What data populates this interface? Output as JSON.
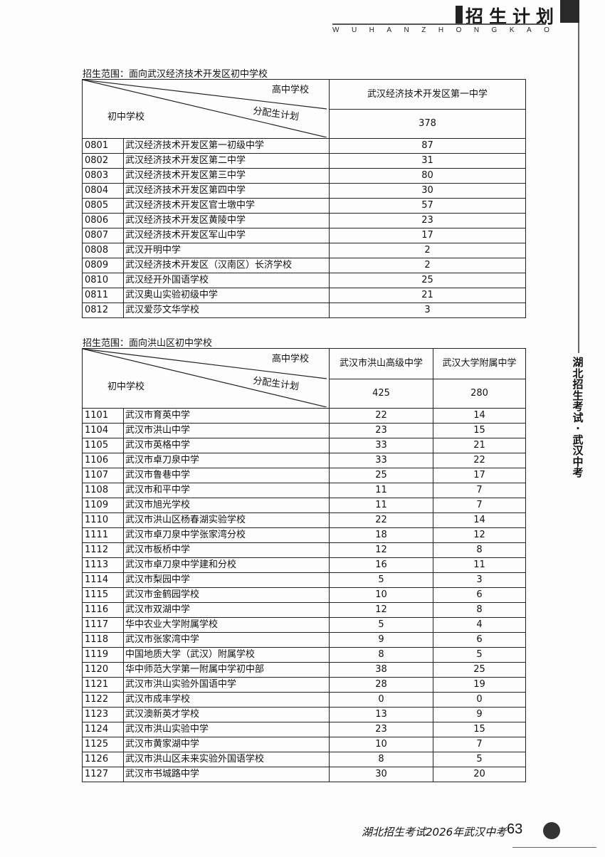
{
  "header": {
    "title": "招生计划",
    "pinyin": [
      "W",
      "U",
      "H",
      "A",
      "N",
      "Z",
      "H",
      "O",
      "N",
      "G",
      "K",
      "A",
      "O"
    ]
  },
  "side_text": "湖北招生考试·武汉中考",
  "tables": [
    {
      "caption": "招生范围：面向武汉经济技术开发区初中学校",
      "corner": {
        "top": "高中学校",
        "middle": "分配生计划",
        "left": "初中学校"
      },
      "high_schools": [
        "武汉经济技术开发区第一中学"
      ],
      "totals": [
        "378"
      ],
      "rows": [
        {
          "code": "0801",
          "name": "武汉经济技术开发区第一初级中学",
          "values": [
            "87"
          ]
        },
        {
          "code": "0802",
          "name": "武汉经济技术开发区第二中学",
          "values": [
            "31"
          ]
        },
        {
          "code": "0803",
          "name": "武汉经济技术开发区第三中学",
          "values": [
            "80"
          ]
        },
        {
          "code": "0804",
          "name": "武汉经济技术开发区第四中学",
          "values": [
            "30"
          ]
        },
        {
          "code": "0805",
          "name": "武汉经济技术开发区官士墩中学",
          "values": [
            "57"
          ]
        },
        {
          "code": "0806",
          "name": "武汉经济技术开发区黄陵中学",
          "values": [
            "23"
          ]
        },
        {
          "code": "0807",
          "name": "武汉经济技术开发区军山中学",
          "values": [
            "17"
          ]
        },
        {
          "code": "0808",
          "name": "武汉开明中学",
          "values": [
            "2"
          ]
        },
        {
          "code": "0809",
          "name": "武汉经济技术开发区（汉南区）长济学校",
          "values": [
            "2"
          ]
        },
        {
          "code": "0810",
          "name": "武汉经开外国语学校",
          "values": [
            "25"
          ]
        },
        {
          "code": "0811",
          "name": "武汉奥山实验初级中学",
          "values": [
            "21"
          ]
        },
        {
          "code": "0812",
          "name": "武汉爱莎文华学校",
          "values": [
            "3"
          ]
        }
      ]
    },
    {
      "caption": "招生范围：面向洪山区初中学校",
      "corner": {
        "top": "高中学校",
        "middle": "分配生计划",
        "left": "初中学校"
      },
      "high_schools": [
        "武汉市洪山高级中学",
        "武汉大学附属中学"
      ],
      "totals": [
        "425",
        "280"
      ],
      "rows": [
        {
          "code": "1101",
          "name": "武汉市育英中学",
          "values": [
            "22",
            "14"
          ]
        },
        {
          "code": "1104",
          "name": "武汉市洪山中学",
          "values": [
            "23",
            "15"
          ]
        },
        {
          "code": "1105",
          "name": "武汉市英格中学",
          "values": [
            "33",
            "21"
          ]
        },
        {
          "code": "1106",
          "name": "武汉市卓刀泉中学",
          "values": [
            "33",
            "22"
          ]
        },
        {
          "code": "1107",
          "name": "武汉市鲁巷中学",
          "values": [
            "25",
            "17"
          ]
        },
        {
          "code": "1108",
          "name": "武汉市和平中学",
          "values": [
            "11",
            "7"
          ]
        },
        {
          "code": "1109",
          "name": "武汉市旭光学校",
          "values": [
            "11",
            "7"
          ]
        },
        {
          "code": "1110",
          "name": "武汉市洪山区杨春湖实验学校",
          "values": [
            "22",
            "14"
          ]
        },
        {
          "code": "1111",
          "name": "武汉市卓刀泉中学张家湾分校",
          "values": [
            "18",
            "12"
          ]
        },
        {
          "code": "1112",
          "name": "武汉市板桥中学",
          "values": [
            "12",
            "8"
          ]
        },
        {
          "code": "1113",
          "name": "武汉市卓刀泉中学建和分校",
          "values": [
            "16",
            "11"
          ]
        },
        {
          "code": "1114",
          "name": "武汉市梨园中学",
          "values": [
            "5",
            "3"
          ]
        },
        {
          "code": "1115",
          "name": "武汉市金鹤园学校",
          "values": [
            "10",
            "6"
          ]
        },
        {
          "code": "1116",
          "name": "武汉市双湖中学",
          "values": [
            "12",
            "8"
          ]
        },
        {
          "code": "1117",
          "name": "华中农业大学附属学校",
          "values": [
            "5",
            "4"
          ]
        },
        {
          "code": "1118",
          "name": "武汉市张家湾中学",
          "values": [
            "9",
            "6"
          ]
        },
        {
          "code": "1119",
          "name": "中国地质大学（武汉）附属学校",
          "values": [
            "8",
            "5"
          ]
        },
        {
          "code": "1120",
          "name": "华中师范大学第一附属中学初中部",
          "values": [
            "38",
            "25"
          ]
        },
        {
          "code": "1121",
          "name": "武汉市洪山实验外国语中学",
          "values": [
            "28",
            "19"
          ]
        },
        {
          "code": "1122",
          "name": "武汉市成丰学校",
          "values": [
            "0",
            "0"
          ]
        },
        {
          "code": "1123",
          "name": "武汉澳新英才学校",
          "values": [
            "13",
            "9"
          ]
        },
        {
          "code": "1124",
          "name": "武汉市洪山实验中学",
          "values": [
            "23",
            "15"
          ]
        },
        {
          "code": "1125",
          "name": "武汉市黄家湖中学",
          "values": [
            "10",
            "7"
          ]
        },
        {
          "code": "1126",
          "name": "武汉市洪山区未来实验外国语学校",
          "values": [
            "8",
            "5"
          ]
        },
        {
          "code": "1127",
          "name": "武汉市书城路中学",
          "values": [
            "30",
            "20"
          ]
        }
      ]
    }
  ],
  "footer": {
    "text": "湖北招生考试2026年武汉中考",
    "page": "63"
  }
}
